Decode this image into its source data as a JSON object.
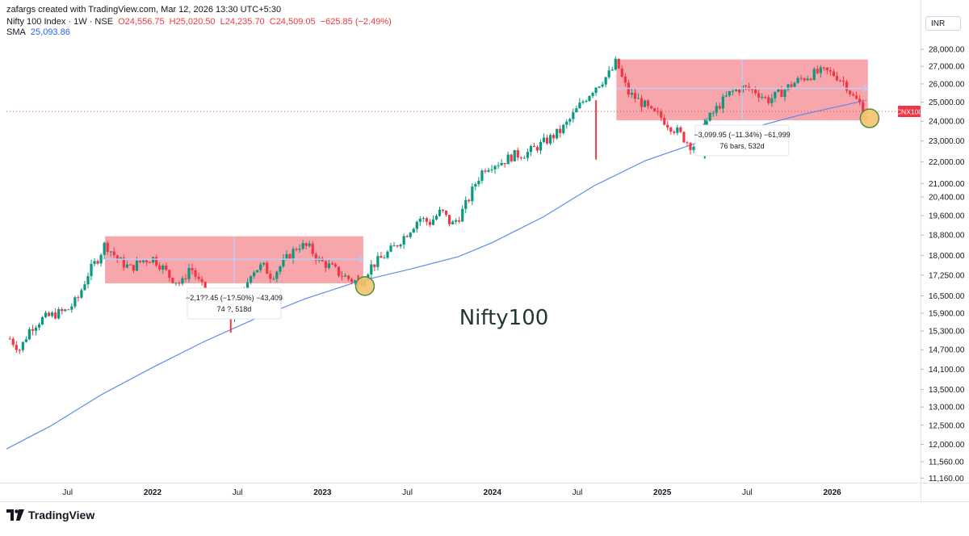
{
  "header": {
    "credit": "zafargs created with TradingView.com, Mar 12, 2026 13:30 UTC+5:30",
    "symbol": "Nifty 100 Index · 1W · NSE",
    "open": "O24,556.75",
    "high": "H25,020.50",
    "low": "L24,235.70",
    "close": "C24,509.05",
    "change": "−625.85 (−2.49%)",
    "sma_label": "SMA",
    "sma_value": "25,093.86"
  },
  "currency": "INR",
  "brand": "TradingView",
  "colors": {
    "up": "#089981",
    "down": "#f23645",
    "sma": "#5b8def",
    "zone": "#f7a1a8",
    "zone_line": "#c0cbf2",
    "price_label": "#f23645",
    "highlight_fill": "#f5c36b",
    "highlight_border": "#4a8f3c"
  },
  "chart_data": {
    "type": "candlestick",
    "title": "Nifty100",
    "interval": "1W",
    "y_axis": {
      "position": "right",
      "ticks": [
        "11,160.00",
        "11,560.00",
        "12,000.00",
        "12,500.00",
        "13,000.00",
        "13,500.00",
        "14,100.00",
        "14,700.00",
        "15,300.00",
        "15,900.00",
        "16,500.00",
        "17,250.00",
        "18,000.00",
        "18,800.00",
        "19,600.00",
        "20,400.00",
        "21,000.00",
        "22,000.00",
        "23,000.00",
        "24,000.00",
        "25,000.00",
        "26,000.00",
        "27,000.00",
        "28,000.00"
      ],
      "ylim": [
        11050,
        28300
      ]
    },
    "x_axis": {
      "labels": [
        {
          "t": 2021.5,
          "text": "Jul",
          "bold": false
        },
        {
          "t": 2022.0,
          "text": "2022",
          "bold": true
        },
        {
          "t": 2022.5,
          "text": "Jul",
          "bold": false
        },
        {
          "t": 2023.0,
          "text": "2023",
          "bold": true
        },
        {
          "t": 2023.5,
          "text": "Jul",
          "bold": false
        },
        {
          "t": 2024.0,
          "text": "2024",
          "bold": true
        },
        {
          "t": 2024.5,
          "text": "Jul",
          "bold": false
        },
        {
          "t": 2025.0,
          "text": "2025",
          "bold": true
        },
        {
          "t": 2025.5,
          "text": "Jul",
          "bold": false
        },
        {
          "t": 2026.0,
          "text": "2026",
          "bold": true
        }
      ],
      "xlim": [
        2021.14,
        2026.52
      ]
    },
    "price_path": [
      [
        2021.16,
        15050
      ],
      [
        2021.22,
        14700
      ],
      [
        2021.28,
        15400
      ],
      [
        2021.35,
        15700
      ],
      [
        2021.42,
        15850
      ],
      [
        2021.5,
        16000
      ],
      [
        2021.56,
        16400
      ],
      [
        2021.62,
        17300
      ],
      [
        2021.68,
        17900
      ],
      [
        2021.72,
        18450
      ],
      [
        2021.8,
        17800
      ],
      [
        2021.87,
        17500
      ],
      [
        2021.94,
        17800
      ],
      [
        2022.0,
        17900
      ],
      [
        2022.05,
        17600
      ],
      [
        2022.1,
        17200
      ],
      [
        2022.17,
        16900
      ],
      [
        2022.22,
        17600
      ],
      [
        2022.28,
        16900
      ],
      [
        2022.35,
        16400
      ],
      [
        2022.42,
        16100
      ],
      [
        2022.46,
        15500
      ],
      [
        2022.52,
        16300
      ],
      [
        2022.58,
        17400
      ],
      [
        2022.65,
        17600
      ],
      [
        2022.7,
        17200
      ],
      [
        2022.78,
        17800
      ],
      [
        2022.86,
        18400
      ],
      [
        2022.92,
        18300
      ],
      [
        2022.98,
        17800
      ],
      [
        2023.05,
        17550
      ],
      [
        2023.1,
        17300
      ],
      [
        2023.16,
        17100
      ],
      [
        2023.22,
        16950
      ],
      [
        2023.28,
        17550
      ],
      [
        2023.35,
        17900
      ],
      [
        2023.42,
        18300
      ],
      [
        2023.5,
        18900
      ],
      [
        2023.57,
        19500
      ],
      [
        2023.63,
        19300
      ],
      [
        2023.7,
        19800
      ],
      [
        2023.76,
        19200
      ],
      [
        2023.81,
        19600
      ],
      [
        2023.86,
        20300
      ],
      [
        2023.9,
        21000
      ],
      [
        2023.95,
        21700
      ],
      [
        2024.0,
        21900
      ],
      [
        2024.06,
        22000
      ],
      [
        2024.12,
        22300
      ],
      [
        2024.2,
        22400
      ],
      [
        2024.28,
        22800
      ],
      [
        2024.35,
        23200
      ],
      [
        2024.4,
        23500
      ],
      [
        2024.45,
        24000
      ],
      [
        2024.52,
        24900
      ],
      [
        2024.6,
        25800
      ],
      [
        2024.66,
        26300
      ],
      [
        2024.7,
        26700
      ],
      [
        2024.73,
        27300
      ],
      [
        2024.76,
        26400
      ],
      [
        2024.8,
        25500
      ],
      [
        2024.86,
        25100
      ],
      [
        2024.9,
        24800
      ],
      [
        2024.94,
        24400
      ],
      [
        2024.98,
        24300
      ],
      [
        2025.04,
        23800
      ],
      [
        2025.1,
        23400
      ],
      [
        2025.14,
        23000
      ],
      [
        2025.18,
        22700
      ],
      [
        2025.22,
        23500
      ],
      [
        2025.28,
        24200
      ],
      [
        2025.34,
        24900
      ],
      [
        2025.4,
        25500
      ],
      [
        2025.47,
        25800
      ],
      [
        2025.55,
        25600
      ],
      [
        2025.62,
        25100
      ],
      [
        2025.68,
        25400
      ],
      [
        2025.75,
        25900
      ],
      [
        2025.82,
        26300
      ],
      [
        2025.9,
        26600
      ],
      [
        2025.96,
        26700
      ],
      [
        2026.02,
        26500
      ],
      [
        2026.08,
        26000
      ],
      [
        2026.12,
        25300
      ],
      [
        2026.16,
        24950
      ],
      [
        2026.2,
        24509
      ]
    ],
    "wicks": [
      {
        "t": 2024.61,
        "low": 22100,
        "high": 25100
      },
      {
        "t": 2025.25,
        "low": 22150,
        "high": 24100
      },
      {
        "t": 2022.46,
        "low": 15250,
        "high": 16200
      },
      {
        "t": 2023.21,
        "low": 16750,
        "high": 17250
      }
    ],
    "sma_path": [
      [
        2021.14,
        11880
      ],
      [
        2021.4,
        12480
      ],
      [
        2021.7,
        13350
      ],
      [
        2022.0,
        14150
      ],
      [
        2022.3,
        14950
      ],
      [
        2022.6,
        15700
      ],
      [
        2022.9,
        16400
      ],
      [
        2023.2,
        17000
      ],
      [
        2023.5,
        17450
      ],
      [
        2023.8,
        17950
      ],
      [
        2024.0,
        18500
      ],
      [
        2024.3,
        19550
      ],
      [
        2024.6,
        20900
      ],
      [
        2024.9,
        22050
      ],
      [
        2025.2,
        22900
      ],
      [
        2025.5,
        23600
      ],
      [
        2025.8,
        24300
      ],
      [
        2026.1,
        24900
      ],
      [
        2026.2,
        25094
      ]
    ],
    "zones": [
      {
        "t1": 2021.72,
        "t2": 2023.24,
        "top": 18750,
        "bottom": 16950,
        "mid": 17850,
        "change": "−2,1??.45 (−1?.50%) −43,409",
        "span": "74 ?, 518d"
      },
      {
        "t1": 2024.73,
        "t2": 2026.21,
        "top": 27400,
        "bottom": 24050,
        "mid": 25750,
        "change": "−3,099.95 (−11.34%) −61,999",
        "span": "76 bars, 532d"
      }
    ],
    "last_price": {
      "value": 24509.05,
      "symbol": "CNX100",
      "price": "24,509.05",
      "countdown": "1d 2h"
    },
    "highlights": [
      {
        "t": 2023.25,
        "y": 16850
      },
      {
        "t": 2026.22,
        "y": 24150
      }
    ]
  }
}
